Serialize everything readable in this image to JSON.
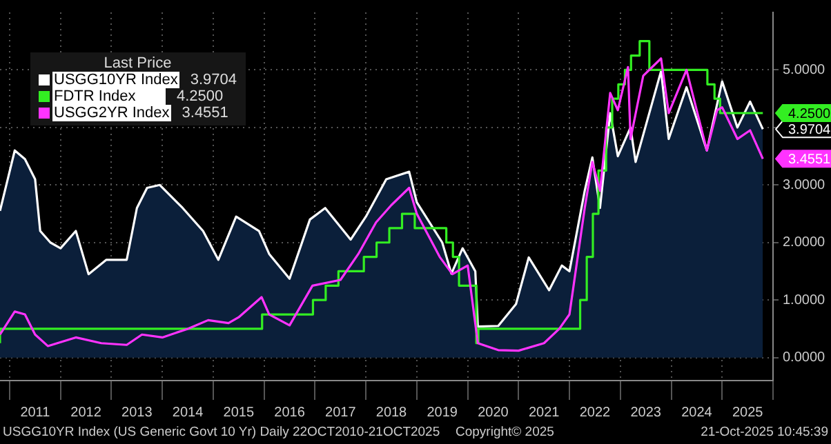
{
  "chart_data": {
    "type": "line",
    "legend_title": "Last Price",
    "legend": "top left",
    "grid": true,
    "annotations": [
      "USGG10YR Index (US Generic Govt 10 Yr) Daily 22OCT2010-21OCT2025",
      "Copyright© 2025",
      "21-Oct-2025 10:45:39"
    ],
    "xlim": [
      2010.81,
      2026.0
    ],
    "xticks": [
      {
        "value": 2011,
        "label": null
      },
      {
        "value": 2011.5,
        "label": "2011"
      },
      {
        "value": 2012,
        "label": null
      },
      {
        "value": 2012.5,
        "label": "2012"
      },
      {
        "value": 2013,
        "label": null
      },
      {
        "value": 2013.5,
        "label": "2013"
      },
      {
        "value": 2014,
        "label": null
      },
      {
        "value": 2014.5,
        "label": "2014"
      },
      {
        "value": 2015,
        "label": null
      },
      {
        "value": 2015.5,
        "label": "2015"
      },
      {
        "value": 2016,
        "label": null
      },
      {
        "value": 2016.5,
        "label": "2016"
      },
      {
        "value": 2017,
        "label": null
      },
      {
        "value": 2017.5,
        "label": "2017"
      },
      {
        "value": 2018,
        "label": null
      },
      {
        "value": 2018.5,
        "label": "2018"
      },
      {
        "value": 2019,
        "label": null
      },
      {
        "value": 2019.5,
        "label": "2019"
      },
      {
        "value": 2020,
        "label": null
      },
      {
        "value": 2020.5,
        "label": "2020"
      },
      {
        "value": 2021,
        "label": null
      },
      {
        "value": 2021.5,
        "label": "2021"
      },
      {
        "value": 2022,
        "label": null
      },
      {
        "value": 2022.5,
        "label": "2022"
      },
      {
        "value": 2023,
        "label": null
      },
      {
        "value": 2023.5,
        "label": "2023"
      },
      {
        "value": 2024,
        "label": null
      },
      {
        "value": 2024.5,
        "label": "2024"
      },
      {
        "value": 2025,
        "label": null
      },
      {
        "value": 2025.5,
        "label": "2025"
      },
      {
        "value": 2026,
        "label": null
      }
    ],
    "ylim": [
      -0.4,
      6.0
    ],
    "yticks": [
      {
        "value": 0,
        "label": "0.0000"
      },
      {
        "value": 1,
        "label": "1.0000"
      },
      {
        "value": 2,
        "label": "2.0000"
      },
      {
        "value": 3,
        "label": "3.0000"
      },
      {
        "value": 4,
        "label": null
      },
      {
        "value": 5,
        "label": "5.0000"
      }
    ],
    "series": [
      {
        "name": "USGG10YR Index",
        "type": "area",
        "color": "#ffffff",
        "x": [
          2010.81,
          2011.1,
          2011.3,
          2011.5,
          2011.6,
          2011.8,
          2012.0,
          2012.3,
          2012.55,
          2012.9,
          2013.3,
          2013.5,
          2013.7,
          2013.95,
          2014.4,
          2014.8,
          2015.1,
          2015.45,
          2015.9,
          2016.1,
          2016.5,
          2016.9,
          2017.2,
          2017.7,
          2018.0,
          2018.4,
          2018.85,
          2019.0,
          2019.5,
          2019.68,
          2019.9,
          2020.15,
          2020.2,
          2020.6,
          2020.95,
          2021.2,
          2021.6,
          2021.85,
          2022.0,
          2022.3,
          2022.45,
          2022.6,
          2022.8,
          2022.95,
          2023.2,
          2023.3,
          2023.8,
          2023.95,
          2024.3,
          2024.7,
          2025.0,
          2025.3,
          2025.55,
          2025.8
        ],
        "values": [
          2.55,
          3.6,
          3.45,
          3.1,
          2.2,
          2.0,
          1.9,
          2.2,
          1.45,
          1.7,
          1.7,
          2.6,
          2.95,
          3.0,
          2.6,
          2.2,
          1.7,
          2.45,
          2.2,
          1.8,
          1.37,
          2.4,
          2.6,
          2.05,
          2.45,
          3.1,
          3.23,
          2.7,
          2.0,
          1.46,
          1.9,
          1.5,
          0.54,
          0.55,
          0.93,
          1.74,
          1.17,
          1.6,
          1.5,
          2.9,
          3.48,
          2.6,
          4.25,
          3.5,
          4.0,
          3.4,
          4.98,
          3.8,
          4.7,
          3.6,
          4.8,
          4.0,
          4.45,
          3.9704
        ],
        "value_labels": [
          null,
          null,
          null,
          null,
          null,
          null,
          null,
          null,
          null,
          null,
          null,
          null,
          null,
          null,
          null,
          null,
          null,
          null,
          null,
          null,
          null,
          null,
          null,
          null,
          null,
          null,
          null,
          null,
          null,
          null,
          null,
          null,
          null,
          null,
          null,
          null,
          null,
          null,
          null,
          null,
          null,
          null,
          null,
          null,
          null,
          null,
          null,
          null,
          null,
          null,
          null,
          null,
          null,
          "3.9704"
        ]
      },
      {
        "name": "FDTR Index",
        "type": "step",
        "color": "#33ee22",
        "x": [
          2010.81,
          2015.96,
          2016.96,
          2017.21,
          2017.46,
          2017.96,
          2018.21,
          2018.46,
          2018.71,
          2018.96,
          2019.58,
          2019.71,
          2019.83,
          2020.17,
          2020.21,
          2022.21,
          2022.34,
          2022.46,
          2022.57,
          2022.72,
          2022.84,
          2022.96,
          2023.09,
          2023.21,
          2023.38,
          2023.57,
          2024.71,
          2024.85,
          2024.96,
          2025.71,
          2025.8
        ],
        "values": [
          0.25,
          0.5,
          0.75,
          1.0,
          1.25,
          1.5,
          1.75,
          2.0,
          2.25,
          2.5,
          2.25,
          2.0,
          1.75,
          1.25,
          0.25,
          0.5,
          1.0,
          1.75,
          2.5,
          3.25,
          4.0,
          4.5,
          4.75,
          5.0,
          5.25,
          5.5,
          5.0,
          4.75,
          4.5,
          4.25,
          4.25
        ],
        "value_labels": [
          null,
          null,
          null,
          null,
          null,
          null,
          null,
          null,
          null,
          null,
          null,
          null,
          null,
          null,
          null,
          null,
          null,
          null,
          null,
          null,
          null,
          null,
          null,
          null,
          null,
          null,
          null,
          null,
          null,
          null,
          "4.2500"
        ]
      },
      {
        "name": "USGG2YR Index",
        "type": "line",
        "color": "#ff33ff",
        "x": [
          2010.81,
          2011.1,
          2011.3,
          2011.5,
          2011.75,
          2012.3,
          2012.8,
          2013.3,
          2013.6,
          2014.0,
          2014.5,
          2014.9,
          2015.3,
          2015.5,
          2015.95,
          2016.1,
          2016.5,
          2016.95,
          2017.5,
          2017.85,
          2018.2,
          2018.5,
          2018.85,
          2019.0,
          2019.45,
          2019.7,
          2020.0,
          2020.2,
          2020.6,
          2021.0,
          2021.5,
          2021.8,
          2022.0,
          2022.3,
          2022.45,
          2022.6,
          2022.8,
          2022.95,
          2023.15,
          2023.2,
          2023.45,
          2023.8,
          2023.95,
          2024.3,
          2024.7,
          2024.9,
          2025.0,
          2025.3,
          2025.55,
          2025.8
        ],
        "values": [
          0.4,
          0.8,
          0.75,
          0.4,
          0.2,
          0.35,
          0.25,
          0.22,
          0.4,
          0.35,
          0.5,
          0.65,
          0.6,
          0.7,
          1.05,
          0.75,
          0.56,
          1.25,
          1.35,
          1.8,
          2.35,
          2.65,
          2.95,
          2.5,
          1.75,
          1.45,
          1.6,
          0.25,
          0.13,
          0.12,
          0.25,
          0.5,
          0.75,
          2.6,
          3.4,
          2.9,
          4.6,
          4.3,
          5.05,
          3.8,
          4.9,
          5.2,
          4.25,
          5.0,
          3.6,
          4.3,
          4.35,
          3.8,
          3.95,
          3.4551
        ],
        "value_labels": [
          null,
          null,
          null,
          null,
          null,
          null,
          null,
          null,
          null,
          null,
          null,
          null,
          null,
          null,
          null,
          null,
          null,
          null,
          null,
          null,
          null,
          null,
          null,
          null,
          null,
          null,
          null,
          null,
          null,
          null,
          null,
          null,
          null,
          null,
          null,
          null,
          null,
          null,
          null,
          null,
          null,
          null,
          null,
          null,
          null,
          null,
          null,
          null,
          null,
          "3.4551"
        ]
      }
    ]
  }
}
